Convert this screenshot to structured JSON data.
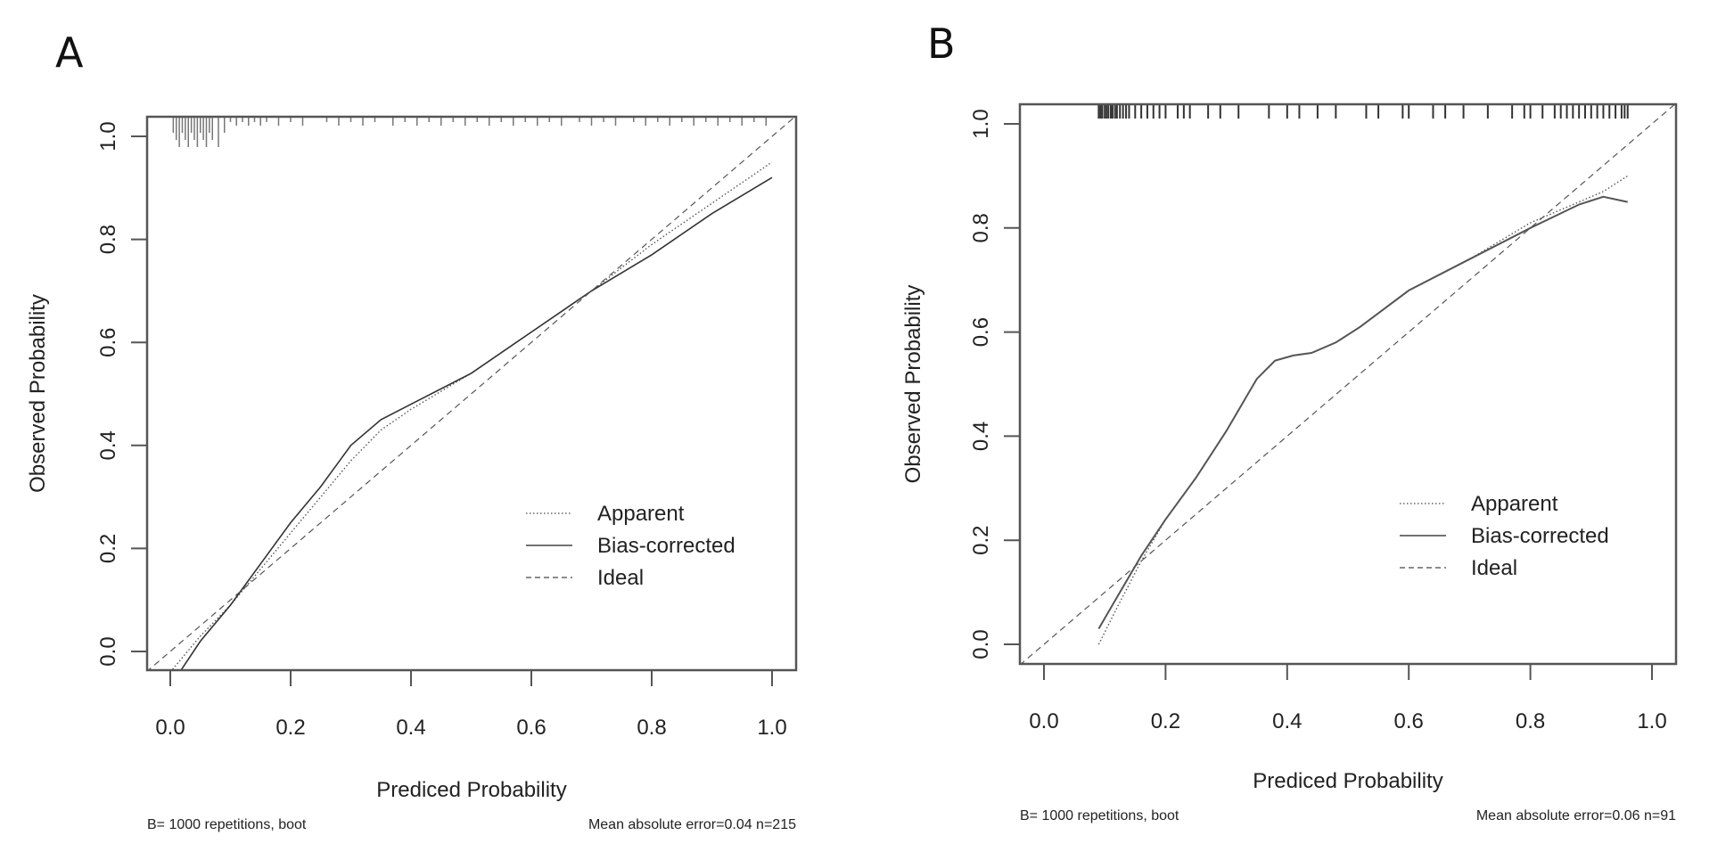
{
  "chart_data": [
    {
      "type": "line",
      "panel_label": "A",
      "title": "",
      "xlabel": "Prediced Probability",
      "ylabel": "Observed Probability",
      "xlim": [
        -0.04,
        1.04
      ],
      "ylim": [
        -0.04,
        1.04
      ],
      "xticks": [
        0.0,
        0.2,
        0.4,
        0.6,
        0.8,
        1.0
      ],
      "xtick_labels": [
        "0.0",
        "0.2",
        "0.4",
        "0.6",
        "0.8",
        "1.0"
      ],
      "yticks": [
        0.0,
        0.2,
        0.4,
        0.6,
        0.8,
        1.0
      ],
      "ytick_labels": [
        "0.0",
        "0.2",
        "0.4",
        "0.6",
        "0.8",
        "1.0"
      ],
      "grid": false,
      "legend_position": "bottom-right",
      "series": [
        {
          "name": "Apparent",
          "style": "dotted",
          "x": [
            0.0,
            0.05,
            0.1,
            0.15,
            0.2,
            0.25,
            0.3,
            0.35,
            0.4,
            0.5,
            0.6,
            0.7,
            0.8,
            0.9,
            1.0
          ],
          "y": [
            -0.04,
            0.03,
            0.09,
            0.16,
            0.23,
            0.3,
            0.37,
            0.43,
            0.47,
            0.54,
            0.62,
            0.7,
            0.79,
            0.87,
            0.95
          ]
        },
        {
          "name": "Bias-corrected",
          "style": "solid",
          "x": [
            0.01,
            0.05,
            0.1,
            0.15,
            0.2,
            0.25,
            0.3,
            0.35,
            0.4,
            0.5,
            0.6,
            0.7,
            0.8,
            0.9,
            1.0
          ],
          "y": [
            -0.05,
            0.02,
            0.09,
            0.17,
            0.25,
            0.32,
            0.4,
            0.45,
            0.48,
            0.54,
            0.62,
            0.7,
            0.77,
            0.85,
            0.92
          ]
        },
        {
          "name": "Ideal",
          "style": "dashed",
          "x": [
            -0.04,
            1.04
          ],
          "y": [
            -0.04,
            1.04
          ]
        }
      ],
      "rug_x": [
        0.005,
        0.01,
        0.015,
        0.02,
        0.025,
        0.03,
        0.035,
        0.04,
        0.045,
        0.05,
        0.055,
        0.06,
        0.065,
        0.07,
        0.08,
        0.09,
        0.1,
        0.11,
        0.12,
        0.13,
        0.14,
        0.15,
        0.16,
        0.18,
        0.2,
        0.22,
        0.26,
        0.28,
        0.3,
        0.32,
        0.34,
        0.37,
        0.39,
        0.41,
        0.43,
        0.45,
        0.47,
        0.49,
        0.51,
        0.53,
        0.55,
        0.57,
        0.59,
        0.61,
        0.63,
        0.65,
        0.68,
        0.7,
        0.72,
        0.74,
        0.77,
        0.79,
        0.81,
        0.83,
        0.85,
        0.87,
        0.89,
        0.91,
        0.93,
        0.95,
        0.97,
        0.99
      ],
      "footnote_left": "B= 1000 repetitions, boot",
      "footnote_right": "Mean absolute error=0.04 n=215",
      "legend": [
        "Apparent",
        "Bias-corrected",
        "Ideal"
      ]
    },
    {
      "type": "line",
      "panel_label": "B",
      "title": "",
      "xlabel": "Prediced Probability",
      "ylabel": "Observed Probability",
      "xlim": [
        -0.04,
        1.04
      ],
      "ylim": [
        -0.04,
        1.04
      ],
      "xticks": [
        0.0,
        0.2,
        0.4,
        0.6,
        0.8,
        1.0
      ],
      "xtick_labels": [
        "0.0",
        "0.2",
        "0.4",
        "0.6",
        "0.8",
        "1.0"
      ],
      "yticks": [
        0.0,
        0.2,
        0.4,
        0.6,
        0.8,
        1.0
      ],
      "ytick_labels": [
        "0.0",
        "0.2",
        "0.4",
        "0.6",
        "0.8",
        "1.0"
      ],
      "grid": false,
      "legend_position": "bottom-right",
      "series": [
        {
          "name": "Apparent",
          "style": "dotted",
          "x": [
            0.09,
            0.12,
            0.16,
            0.2,
            0.25,
            0.3,
            0.35,
            0.38,
            0.41,
            0.44,
            0.48,
            0.52,
            0.6,
            0.7,
            0.8,
            0.88,
            0.92,
            0.96
          ],
          "y": [
            0.0,
            0.07,
            0.16,
            0.24,
            0.32,
            0.41,
            0.51,
            0.545,
            0.555,
            0.56,
            0.58,
            0.61,
            0.68,
            0.74,
            0.81,
            0.85,
            0.87,
            0.9
          ]
        },
        {
          "name": "Bias-corrected",
          "style": "solid",
          "x": [
            0.09,
            0.12,
            0.16,
            0.2,
            0.25,
            0.3,
            0.35,
            0.38,
            0.41,
            0.44,
            0.48,
            0.52,
            0.6,
            0.7,
            0.8,
            0.88,
            0.92,
            0.96
          ],
          "y": [
            0.03,
            0.09,
            0.17,
            0.24,
            0.32,
            0.41,
            0.51,
            0.545,
            0.555,
            0.56,
            0.58,
            0.61,
            0.68,
            0.74,
            0.8,
            0.845,
            0.86,
            0.85
          ]
        },
        {
          "name": "Ideal",
          "style": "dashed",
          "x": [
            -0.04,
            1.04
          ],
          "y": [
            -0.04,
            1.04
          ]
        }
      ],
      "rug_x": [
        0.09,
        0.093,
        0.096,
        0.1,
        0.103,
        0.106,
        0.11,
        0.113,
        0.117,
        0.12,
        0.125,
        0.13,
        0.135,
        0.14,
        0.15,
        0.16,
        0.17,
        0.18,
        0.19,
        0.2,
        0.22,
        0.23,
        0.24,
        0.27,
        0.29,
        0.32,
        0.37,
        0.4,
        0.42,
        0.45,
        0.48,
        0.53,
        0.55,
        0.59,
        0.6,
        0.64,
        0.66,
        0.69,
        0.73,
        0.77,
        0.79,
        0.8,
        0.82,
        0.84,
        0.85,
        0.86,
        0.87,
        0.88,
        0.89,
        0.9,
        0.91,
        0.92,
        0.93,
        0.94,
        0.95,
        0.955,
        0.96
      ],
      "footnote_left": "B= 1000 repetitions, boot",
      "footnote_right": "Mean absolute error=0.06 n=91",
      "legend": [
        "Apparent",
        "Bias-corrected",
        "Ideal"
      ]
    }
  ]
}
